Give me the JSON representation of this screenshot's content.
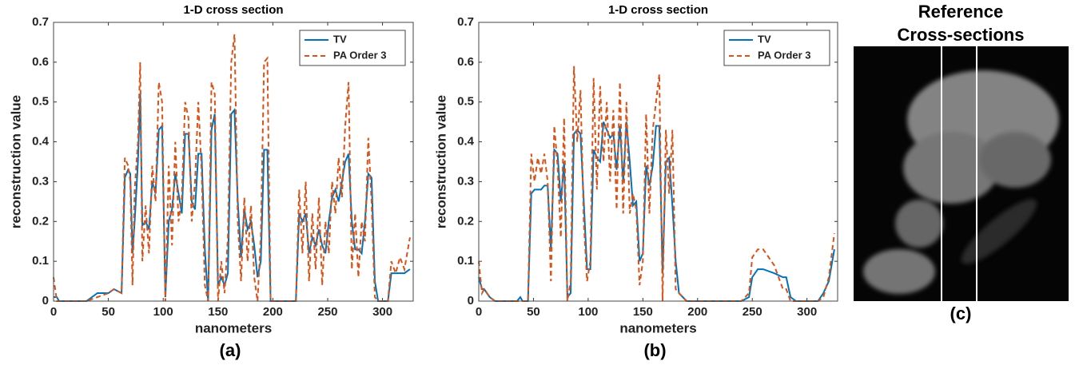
{
  "chart_data": [
    {
      "type": "line",
      "title": "1-D cross section",
      "x_label": "nanometers",
      "y_label": "reconstruction value",
      "caption": "(a)",
      "x": [
        0,
        3,
        5,
        10,
        20,
        30,
        40,
        50,
        55,
        62,
        65,
        68,
        70,
        72,
        74,
        77,
        79,
        81,
        84,
        87,
        90,
        93,
        96,
        99,
        102,
        105,
        108,
        111,
        114,
        117,
        120,
        123,
        126,
        129,
        132,
        135,
        138,
        141,
        144,
        147,
        150,
        153,
        156,
        159,
        162,
        165,
        168,
        171,
        174,
        177,
        180,
        183,
        186,
        189,
        192,
        195,
        198,
        205,
        215,
        221,
        224,
        227,
        230,
        233,
        236,
        239,
        242,
        245,
        248,
        251,
        254,
        257,
        260,
        263,
        266,
        269,
        272,
        275,
        278,
        281,
        284,
        287,
        290,
        293,
        296,
        300,
        305,
        308,
        312,
        316,
        320,
        325
      ],
      "series": [
        {
          "name": "TV",
          "color": "#0072bd",
          "dash": false,
          "values": [
            0.01,
            0.01,
            0.0,
            0.0,
            0.0,
            0.0,
            0.02,
            0.02,
            0.03,
            0.02,
            0.31,
            0.33,
            0.32,
            0.12,
            0.2,
            0.35,
            0.52,
            0.19,
            0.2,
            0.18,
            0.3,
            0.27,
            0.43,
            0.44,
            0.01,
            0.2,
            0.23,
            0.32,
            0.27,
            0.22,
            0.42,
            0.42,
            0.25,
            0.23,
            0.37,
            0.37,
            0.13,
            0.0,
            0.43,
            0.47,
            0.04,
            0.06,
            0.04,
            0.07,
            0.47,
            0.48,
            0.25,
            0.11,
            0.23,
            0.18,
            0.2,
            0.14,
            0.06,
            0.1,
            0.38,
            0.38,
            0.0,
            0.0,
            0.0,
            0.0,
            0.22,
            0.2,
            0.22,
            0.12,
            0.16,
            0.14,
            0.18,
            0.14,
            0.12,
            0.2,
            0.26,
            0.28,
            0.25,
            0.3,
            0.35,
            0.37,
            0.2,
            0.13,
            0.13,
            0.12,
            0.2,
            0.32,
            0.31,
            0.05,
            0.0,
            0.0,
            0.0,
            0.07,
            0.07,
            0.07,
            0.07,
            0.08
          ]
        },
        {
          "name": "PA Order 3",
          "color": "#d95319",
          "dash": true,
          "values": [
            0.06,
            0.0,
            0.0,
            0.0,
            0.0,
            0.0,
            0.01,
            0.02,
            0.03,
            0.02,
            0.36,
            0.34,
            0.3,
            0.04,
            0.28,
            0.4,
            0.6,
            0.1,
            0.24,
            0.12,
            0.34,
            0.25,
            0.55,
            0.5,
            0.0,
            0.34,
            0.14,
            0.4,
            0.2,
            0.26,
            0.5,
            0.46,
            0.2,
            0.3,
            0.5,
            0.33,
            0.04,
            0.0,
            0.55,
            0.52,
            0.0,
            0.1,
            0.02,
            0.16,
            0.6,
            0.67,
            0.2,
            0.05,
            0.26,
            0.1,
            0.24,
            0.06,
            0.0,
            0.16,
            0.6,
            0.61,
            0.0,
            0.0,
            0.0,
            0.0,
            0.28,
            0.12,
            0.3,
            0.05,
            0.22,
            0.08,
            0.26,
            0.04,
            0.2,
            0.12,
            0.3,
            0.22,
            0.36,
            0.26,
            0.44,
            0.55,
            0.08,
            0.22,
            0.06,
            0.2,
            0.15,
            0.41,
            0.25,
            0.01,
            0.0,
            0.0,
            0.0,
            0.1,
            0.07,
            0.11,
            0.08,
            0.16
          ]
        }
      ],
      "xlim": [
        0,
        328
      ],
      "xticks": [
        0,
        50,
        100,
        150,
        200,
        250,
        300
      ],
      "ylim": [
        0,
        0.7
      ],
      "yticks": [
        0,
        0.1,
        0.2,
        0.3,
        0.4,
        0.5,
        0.6,
        0.7
      ],
      "legend": "top-right"
    },
    {
      "type": "line",
      "title": "1-D cross section",
      "x_label": "nanometers",
      "y_label": "reconstruction value",
      "caption": "(b)",
      "x": [
        0,
        3,
        5,
        10,
        15,
        20,
        30,
        35,
        38,
        40,
        45,
        48,
        51,
        54,
        57,
        60,
        63,
        66,
        69,
        72,
        75,
        78,
        81,
        84,
        87,
        90,
        93,
        96,
        99,
        102,
        105,
        108,
        111,
        114,
        117,
        120,
        123,
        126,
        129,
        132,
        135,
        138,
        141,
        144,
        147,
        150,
        153,
        156,
        159,
        162,
        165,
        168,
        171,
        174,
        177,
        180,
        183,
        190,
        200,
        220,
        240,
        247,
        250,
        255,
        260,
        270,
        278,
        281,
        285,
        290,
        300,
        310,
        315,
        320,
        325
      ],
      "series": [
        {
          "name": "TV",
          "color": "#0072bd",
          "dash": false,
          "values": [
            0.06,
            0.03,
            0.03,
            0.01,
            0.0,
            0.0,
            0.0,
            0.0,
            0.01,
            0.0,
            0.0,
            0.27,
            0.28,
            0.28,
            0.28,
            0.29,
            0.29,
            0.13,
            0.38,
            0.37,
            0.25,
            0.35,
            0.01,
            0.02,
            0.42,
            0.43,
            0.42,
            0.25,
            0.08,
            0.08,
            0.38,
            0.36,
            0.35,
            0.45,
            0.43,
            0.41,
            0.42,
            0.33,
            0.44,
            0.3,
            0.45,
            0.35,
            0.24,
            0.25,
            0.1,
            0.12,
            0.34,
            0.29,
            0.34,
            0.44,
            0.44,
            0.07,
            0.35,
            0.36,
            0.24,
            0.1,
            0.02,
            0.0,
            0.0,
            0.0,
            0.0,
            0.01,
            0.06,
            0.08,
            0.08,
            0.07,
            0.06,
            0.06,
            0.01,
            0.0,
            0.0,
            0.0,
            0.02,
            0.05,
            0.13
          ]
        },
        {
          "name": "PA Order 3",
          "color": "#d95319",
          "dash": true,
          "values": [
            0.1,
            0.02,
            0.03,
            0.01,
            0.0,
            0.0,
            0.0,
            0.0,
            0.0,
            0.0,
            0.0,
            0.37,
            0.3,
            0.36,
            0.32,
            0.37,
            0.3,
            0.05,
            0.44,
            0.34,
            0.16,
            0.46,
            0.0,
            0.05,
            0.59,
            0.4,
            0.53,
            0.2,
            0.05,
            0.1,
            0.56,
            0.28,
            0.54,
            0.35,
            0.5,
            0.3,
            0.48,
            0.23,
            0.55,
            0.22,
            0.5,
            0.22,
            0.27,
            0.23,
            0.04,
            0.1,
            0.47,
            0.22,
            0.43,
            0.5,
            0.57,
            0.0,
            0.43,
            0.27,
            0.43,
            0.03,
            0.02,
            0.0,
            0.0,
            0.0,
            0.0,
            0.02,
            0.11,
            0.13,
            0.13,
            0.09,
            0.03,
            0.03,
            0.0,
            0.0,
            0.0,
            0.0,
            0.01,
            0.06,
            0.17
          ]
        }
      ],
      "xlim": [
        0,
        328
      ],
      "xticks": [
        0,
        50,
        100,
        150,
        200,
        250,
        300
      ],
      "ylim": [
        0,
        0.7
      ],
      "yticks": [
        0,
        0.1,
        0.2,
        0.3,
        0.4,
        0.5,
        0.6,
        0.7
      ],
      "legend": "top-right"
    }
  ],
  "panel_c": {
    "title_lines": [
      "Reference",
      "Cross-sections"
    ],
    "caption": "(c)"
  }
}
